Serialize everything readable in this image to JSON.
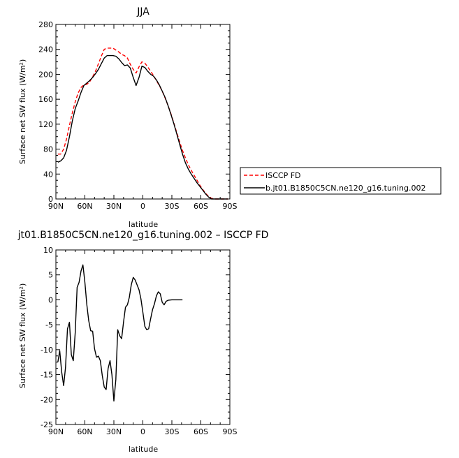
{
  "chart_data": [
    {
      "type": "line",
      "title": "JJA",
      "xlabel": "latitude",
      "ylabel": "Surface net SW flux (W/m²)",
      "ylim": [
        0,
        280
      ],
      "xlim": [
        -90,
        90
      ],
      "yticks": [
        0,
        40,
        80,
        120,
        160,
        200,
        240,
        280
      ],
      "xticks": [
        {
          "value": -90,
          "label": "90N"
        },
        {
          "value": -60,
          "label": "60N"
        },
        {
          "value": -30,
          "label": "30N"
        },
        {
          "value": 0,
          "label": "0"
        },
        {
          "value": 30,
          "label": "30S"
        },
        {
          "value": 60,
          "label": "60S"
        },
        {
          "value": 90,
          "label": "90S"
        }
      ],
      "legend_position": "right",
      "series": [
        {
          "name": "ISCCP FD",
          "color": "#ff0000",
          "dash": true,
          "points": [
            [
              -88,
              72
            ],
            [
              -85,
              72
            ],
            [
              -82,
              80
            ],
            [
              -79,
              96
            ],
            [
              -76,
              118
            ],
            [
              -73,
              138
            ],
            [
              -70,
              156
            ],
            [
              -67,
              170
            ],
            [
              -64,
              179
            ],
            [
              -61,
              183
            ],
            [
              -58,
              184
            ],
            [
              -55,
              188
            ],
            [
              -52,
              196
            ],
            [
              -49,
              205
            ],
            [
              -46,
              217
            ],
            [
              -43,
              229
            ],
            [
              -40,
              240
            ],
            [
              -37,
              242
            ],
            [
              -34,
              242
            ],
            [
              -31,
              242
            ],
            [
              -28,
              239
            ],
            [
              -25,
              236
            ],
            [
              -22,
              232
            ],
            [
              -19,
              230
            ],
            [
              -16,
              226
            ],
            [
              -13,
              216
            ],
            [
              -10,
              208
            ],
            [
              -7,
              202
            ],
            [
              -4,
              212
            ],
            [
              -1,
              220
            ],
            [
              2,
              218
            ],
            [
              5,
              212
            ],
            [
              8,
              205
            ],
            [
              11,
              198
            ],
            [
              14,
              190
            ],
            [
              17,
              182
            ],
            [
              20,
              173
            ],
            [
              23,
              162
            ],
            [
              26,
              150
            ],
            [
              29,
              137
            ],
            [
              32,
              122
            ],
            [
              35,
              107
            ],
            [
              38,
              92
            ],
            [
              41,
              78
            ],
            [
              44,
              66
            ],
            [
              47,
              55
            ],
            [
              50,
              46
            ],
            [
              53,
              38
            ],
            [
              56,
              30
            ],
            [
              59,
              22
            ],
            [
              62,
              15
            ],
            [
              65,
              9
            ],
            [
              68,
              4
            ],
            [
              71,
              1
            ],
            [
              74,
              0
            ],
            [
              80,
              0
            ],
            [
              85,
              0
            ],
            [
              88,
              0
            ]
          ]
        },
        {
          "name": "b.jt01.B1850C5CN.ne120_g16.tuning.002",
          "color": "#000000",
          "dash": false,
          "points": [
            [
              -88,
              59
            ],
            [
              -85,
              61
            ],
            [
              -82,
              66
            ],
            [
              -79,
              78
            ],
            [
              -76,
              100
            ],
            [
              -73,
              125
            ],
            [
              -70,
              145
            ],
            [
              -67,
              157
            ],
            [
              -64,
              171
            ],
            [
              -61,
              182
            ],
            [
              -58,
              186
            ],
            [
              -55,
              190
            ],
            [
              -52,
              195
            ],
            [
              -49,
              201
            ],
            [
              -46,
              208
            ],
            [
              -43,
              217
            ],
            [
              -40,
              226
            ],
            [
              -37,
              230
            ],
            [
              -34,
              230
            ],
            [
              -31,
              230
            ],
            [
              -28,
              229
            ],
            [
              -25,
              225
            ],
            [
              -22,
              219
            ],
            [
              -19,
              214
            ],
            [
              -16,
              215
            ],
            [
              -13,
              210
            ],
            [
              -10,
              195
            ],
            [
              -7,
              182
            ],
            [
              -4,
              195
            ],
            [
              -1,
              213
            ],
            [
              2,
              211
            ],
            [
              5,
              205
            ],
            [
              8,
              200
            ],
            [
              11,
              197
            ],
            [
              14,
              191
            ],
            [
              17,
              183
            ],
            [
              20,
              173
            ],
            [
              23,
              163
            ],
            [
              26,
              150
            ],
            [
              29,
              136
            ],
            [
              32,
              121
            ],
            [
              35,
              105
            ],
            [
              38,
              88
            ],
            [
              41,
              72
            ],
            [
              44,
              58
            ],
            [
              47,
              48
            ],
            [
              50,
              40
            ],
            [
              53,
              33
            ],
            [
              56,
              26
            ],
            [
              59,
              20
            ],
            [
              62,
              14
            ],
            [
              65,
              8
            ],
            [
              68,
              3
            ],
            [
              71,
              0
            ],
            [
              74,
              0
            ],
            [
              80,
              0
            ],
            [
              85,
              0
            ],
            [
              88,
              0
            ]
          ]
        }
      ]
    },
    {
      "type": "line",
      "title": "jt01.B1850C5CN.ne120_g16.tuning.002 – ISCCP FD",
      "xlabel": "latitude",
      "ylabel": "Surface net SW flux (W/m²)",
      "ylim": [
        -25,
        10
      ],
      "xlim": [
        -90,
        90
      ],
      "yticks": [
        -25,
        -20,
        -15,
        -10,
        -5,
        0,
        5,
        10
      ],
      "xticks": [
        {
          "value": -90,
          "label": "90N"
        },
        {
          "value": -60,
          "label": "60N"
        },
        {
          "value": -30,
          "label": "30N"
        },
        {
          "value": 0,
          "label": "0"
        },
        {
          "value": 30,
          "label": "30S"
        },
        {
          "value": 60,
          "label": "60S"
        },
        {
          "value": 90,
          "label": "90S"
        }
      ],
      "series": [
        {
          "color": "#000000",
          "dash": false,
          "points": [
            [
              -88,
              -12.5
            ],
            [
              -86,
              -10.2
            ],
            [
              -84,
              -14.5
            ],
            [
              -82,
              -17.2
            ],
            [
              -80,
              -13.5
            ],
            [
              -78,
              -5.8
            ],
            [
              -76,
              -4.5
            ],
            [
              -74,
              -11.0
            ],
            [
              -72,
              -12.2
            ],
            [
              -70,
              -6.5
            ],
            [
              -68,
              2.5
            ],
            [
              -66,
              3.5
            ],
            [
              -64,
              5.8
            ],
            [
              -62,
              7.0
            ],
            [
              -60,
              3.5
            ],
            [
              -58,
              -1.0
            ],
            [
              -56,
              -4.2
            ],
            [
              -54,
              -6.2
            ],
            [
              -52,
              -6.3
            ],
            [
              -50,
              -9.8
            ],
            [
              -48,
              -11.5
            ],
            [
              -46,
              -11.3
            ],
            [
              -44,
              -12.2
            ],
            [
              -42,
              -15.2
            ],
            [
              -40,
              -17.5
            ],
            [
              -38,
              -18.0
            ],
            [
              -36,
              -13.8
            ],
            [
              -34,
              -12.2
            ],
            [
              -32,
              -15.0
            ],
            [
              -30,
              -20.3
            ],
            [
              -28,
              -16.0
            ],
            [
              -26,
              -6.0
            ],
            [
              -24,
              -7.2
            ],
            [
              -22,
              -7.8
            ],
            [
              -20,
              -4.5
            ],
            [
              -18,
              -1.5
            ],
            [
              -16,
              -1.0
            ],
            [
              -14,
              0.5
            ],
            [
              -12,
              3.0
            ],
            [
              -10,
              4.5
            ],
            [
              -8,
              4.0
            ],
            [
              -6,
              3.0
            ],
            [
              -4,
              2.0
            ],
            [
              -2,
              0.2
            ],
            [
              0,
              -2.5
            ],
            [
              2,
              -5.3
            ],
            [
              4,
              -6.0
            ],
            [
              6,
              -5.8
            ],
            [
              8,
              -3.8
            ],
            [
              10,
              -2.0
            ],
            [
              12,
              -0.8
            ],
            [
              14,
              0.8
            ],
            [
              16,
              1.6
            ],
            [
              18,
              1.2
            ],
            [
              20,
              -0.5
            ],
            [
              22,
              -1.0
            ],
            [
              24,
              -0.3
            ],
            [
              26,
              -0.1
            ],
            [
              30,
              0.0
            ],
            [
              34,
              0.0
            ],
            [
              38,
              0.0
            ],
            [
              41,
              0.0
            ]
          ]
        }
      ]
    }
  ]
}
